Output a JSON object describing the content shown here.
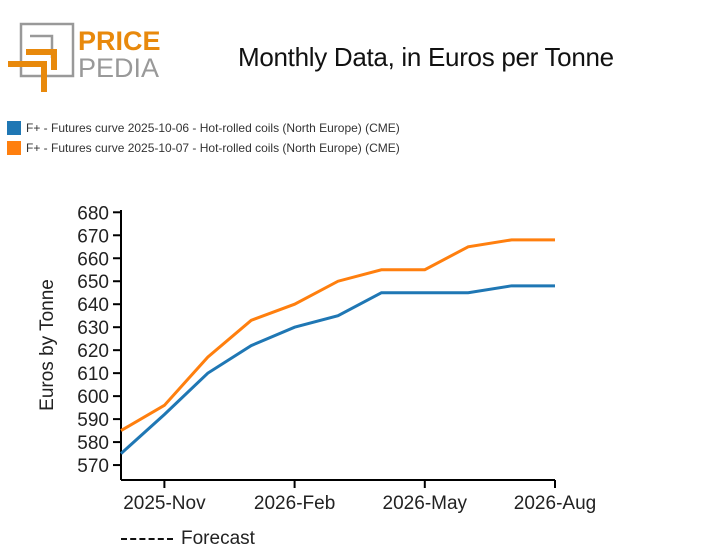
{
  "logo": {
    "text_top": "PRICE",
    "text_bottom": "PEDIA"
  },
  "title": "Monthly Data, in Euros per Tonne",
  "legend": [
    {
      "label": "F+ - Futures curve 2025-10-06 - Hot-rolled coils (North Europe) (CME)",
      "color": "#1f77b4"
    },
    {
      "label": "F+ - Futures curve 2025-10-07 - Hot-rolled coils (North Europe) (CME)",
      "color": "#ff7f0e"
    }
  ],
  "forecast_label": "Forecast",
  "chart_data": {
    "type": "line",
    "title": "Monthly Data, in Euros per Tonne",
    "ylabel": "Euros by Tonne",
    "xlabel": "",
    "x": [
      "2025-10",
      "2025-11",
      "2025-12",
      "2026-01",
      "2026-02",
      "2026-03",
      "2026-04",
      "2026-05",
      "2026-06",
      "2026-07",
      "2026-08"
    ],
    "x_ticks": [
      {
        "x": "2025-11",
        "label": "2025-Nov"
      },
      {
        "x": "2026-02",
        "label": "2026-Feb"
      },
      {
        "x": "2026-05",
        "label": "2026-May"
      },
      {
        "x": "2026-08",
        "label": "2026-Aug"
      }
    ],
    "y_ticks": [
      570,
      580,
      590,
      600,
      610,
      620,
      630,
      640,
      650,
      660,
      670,
      680
    ],
    "ylim": [
      563.5,
      681
    ],
    "grid": false,
    "legend_position": "top-left",
    "series": [
      {
        "name": "F+ - Futures curve 2025-10-06 - Hot-rolled coils (North Europe) (CME)",
        "color": "#1f77b4",
        "values": [
          575,
          592,
          610,
          622,
          630,
          635,
          645,
          645,
          645,
          648,
          648
        ]
      },
      {
        "name": "F+ - Futures curve 2025-10-07 - Hot-rolled coils (North Europe) (CME)",
        "color": "#ff7f0e",
        "values": [
          585,
          596,
          617,
          633,
          640,
          650,
          655,
          655,
          665,
          668,
          668
        ]
      }
    ]
  }
}
